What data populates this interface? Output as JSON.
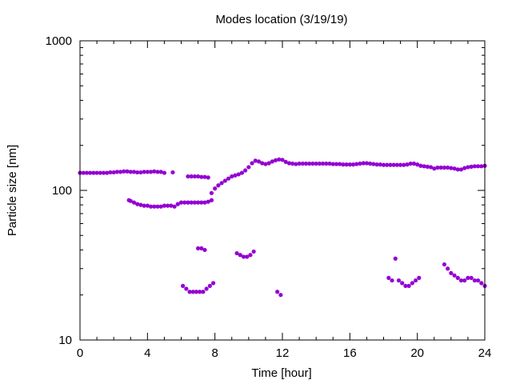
{
  "chart_data": {
    "type": "scatter",
    "title": "Modes location (3/19/19)",
    "xlabel": "Time [hour]",
    "ylabel": "Particle size [nm]",
    "xlim": [
      0,
      24
    ],
    "ylim": [
      10,
      1000
    ],
    "yscale": "log",
    "xticks": [
      0,
      4,
      8,
      12,
      16,
      20,
      24
    ],
    "xtick_labels": [
      "0",
      "4",
      "8",
      "12",
      "16",
      "20",
      "24"
    ],
    "yticks": [
      10,
      100,
      1000
    ],
    "ytick_labels": [
      "10",
      "100",
      "1000"
    ],
    "grid": false,
    "legend": "none",
    "marker_color": "#9400d3",
    "series": [
      {
        "values": [
          {
            "x": 0.0,
            "y": 131
          },
          {
            "x": 0.2,
            "y": 131
          },
          {
            "x": 0.4,
            "y": 131
          },
          {
            "x": 0.6,
            "y": 131
          },
          {
            "x": 0.8,
            "y": 131
          },
          {
            "x": 1.0,
            "y": 131
          },
          {
            "x": 1.2,
            "y": 131
          },
          {
            "x": 1.4,
            "y": 131
          },
          {
            "x": 1.6,
            "y": 131
          },
          {
            "x": 1.8,
            "y": 132
          },
          {
            "x": 2.0,
            "y": 132
          },
          {
            "x": 2.2,
            "y": 133
          },
          {
            "x": 2.4,
            "y": 133
          },
          {
            "x": 2.6,
            "y": 134
          },
          {
            "x": 2.8,
            "y": 134
          },
          {
            "x": 3.0,
            "y": 133
          },
          {
            "x": 3.2,
            "y": 133
          },
          {
            "x": 3.4,
            "y": 132
          },
          {
            "x": 3.6,
            "y": 132
          },
          {
            "x": 3.8,
            "y": 133
          },
          {
            "x": 4.0,
            "y": 133
          },
          {
            "x": 4.2,
            "y": 133
          },
          {
            "x": 4.4,
            "y": 134
          },
          {
            "x": 4.6,
            "y": 133
          },
          {
            "x": 4.8,
            "y": 133
          },
          {
            "x": 5.0,
            "y": 131
          },
          {
            "x": 5.5,
            "y": 132
          },
          {
            "x": 6.4,
            "y": 124
          },
          {
            "x": 6.6,
            "y": 124
          },
          {
            "x": 6.8,
            "y": 124
          },
          {
            "x": 7.0,
            "y": 124
          },
          {
            "x": 7.2,
            "y": 123
          },
          {
            "x": 7.4,
            "y": 123
          },
          {
            "x": 7.6,
            "y": 122
          },
          {
            "x": 7.8,
            "y": 96
          },
          {
            "x": 8.0,
            "y": 103
          },
          {
            "x": 8.2,
            "y": 108
          },
          {
            "x": 8.4,
            "y": 112
          },
          {
            "x": 8.6,
            "y": 116
          },
          {
            "x": 8.8,
            "y": 120
          },
          {
            "x": 9.0,
            "y": 124
          },
          {
            "x": 9.2,
            "y": 126
          },
          {
            "x": 9.4,
            "y": 128
          },
          {
            "x": 9.6,
            "y": 131
          },
          {
            "x": 9.8,
            "y": 136
          },
          {
            "x": 10.0,
            "y": 143
          },
          {
            "x": 10.2,
            "y": 152
          },
          {
            "x": 10.4,
            "y": 158
          },
          {
            "x": 10.6,
            "y": 156
          },
          {
            "x": 10.8,
            "y": 152
          },
          {
            "x": 11.0,
            "y": 150
          },
          {
            "x": 11.2,
            "y": 152
          },
          {
            "x": 11.4,
            "y": 156
          },
          {
            "x": 11.6,
            "y": 159
          },
          {
            "x": 11.8,
            "y": 161
          },
          {
            "x": 12.0,
            "y": 160
          },
          {
            "x": 12.2,
            "y": 155
          },
          {
            "x": 12.4,
            "y": 152
          },
          {
            "x": 12.6,
            "y": 151
          },
          {
            "x": 12.8,
            "y": 150
          },
          {
            "x": 13.0,
            "y": 151
          },
          {
            "x": 13.2,
            "y": 151
          },
          {
            "x": 13.4,
            "y": 151
          },
          {
            "x": 13.6,
            "y": 151
          },
          {
            "x": 13.8,
            "y": 151
          },
          {
            "x": 14.0,
            "y": 151
          },
          {
            "x": 14.2,
            "y": 151
          },
          {
            "x": 14.4,
            "y": 151
          },
          {
            "x": 14.6,
            "y": 151
          },
          {
            "x": 14.8,
            "y": 151
          },
          {
            "x": 15.0,
            "y": 150
          },
          {
            "x": 15.2,
            "y": 150
          },
          {
            "x": 15.4,
            "y": 150
          },
          {
            "x": 15.6,
            "y": 149
          },
          {
            "x": 15.8,
            "y": 149
          },
          {
            "x": 16.0,
            "y": 149
          },
          {
            "x": 16.2,
            "y": 149
          },
          {
            "x": 16.4,
            "y": 150
          },
          {
            "x": 16.6,
            "y": 151
          },
          {
            "x": 16.8,
            "y": 152
          },
          {
            "x": 17.0,
            "y": 152
          },
          {
            "x": 17.2,
            "y": 151
          },
          {
            "x": 17.4,
            "y": 150
          },
          {
            "x": 17.6,
            "y": 149
          },
          {
            "x": 17.8,
            "y": 149
          },
          {
            "x": 18.0,
            "y": 148
          },
          {
            "x": 18.2,
            "y": 148
          },
          {
            "x": 18.4,
            "y": 148
          },
          {
            "x": 18.6,
            "y": 148
          },
          {
            "x": 18.8,
            "y": 148
          },
          {
            "x": 19.0,
            "y": 148
          },
          {
            "x": 19.2,
            "y": 148
          },
          {
            "x": 19.4,
            "y": 149
          },
          {
            "x": 19.6,
            "y": 151
          },
          {
            "x": 19.8,
            "y": 151
          },
          {
            "x": 20.0,
            "y": 149
          },
          {
            "x": 20.2,
            "y": 146
          },
          {
            "x": 20.4,
            "y": 145
          },
          {
            "x": 20.6,
            "y": 144
          },
          {
            "x": 20.8,
            "y": 143
          },
          {
            "x": 21.0,
            "y": 140
          },
          {
            "x": 21.2,
            "y": 142
          },
          {
            "x": 21.4,
            "y": 142
          },
          {
            "x": 21.6,
            "y": 142
          },
          {
            "x": 21.8,
            "y": 142
          },
          {
            "x": 22.0,
            "y": 141
          },
          {
            "x": 22.2,
            "y": 140
          },
          {
            "x": 22.4,
            "y": 138
          },
          {
            "x": 22.6,
            "y": 138
          },
          {
            "x": 22.8,
            "y": 141
          },
          {
            "x": 23.0,
            "y": 143
          },
          {
            "x": 23.2,
            "y": 144
          },
          {
            "x": 23.4,
            "y": 145
          },
          {
            "x": 23.6,
            "y": 145
          },
          {
            "x": 23.8,
            "y": 145
          },
          {
            "x": 24.0,
            "y": 146
          },
          {
            "x": 2.9,
            "y": 86
          },
          {
            "x": 3.0,
            "y": 85
          },
          {
            "x": 3.2,
            "y": 83
          },
          {
            "x": 3.4,
            "y": 81
          },
          {
            "x": 3.6,
            "y": 80
          },
          {
            "x": 3.8,
            "y": 79
          },
          {
            "x": 4.0,
            "y": 79
          },
          {
            "x": 4.2,
            "y": 78
          },
          {
            "x": 4.4,
            "y": 78
          },
          {
            "x": 4.6,
            "y": 78
          },
          {
            "x": 4.8,
            "y": 78
          },
          {
            "x": 5.0,
            "y": 79
          },
          {
            "x": 5.2,
            "y": 79
          },
          {
            "x": 5.4,
            "y": 79
          },
          {
            "x": 5.6,
            "y": 78
          },
          {
            "x": 5.8,
            "y": 81
          },
          {
            "x": 6.0,
            "y": 83
          },
          {
            "x": 6.2,
            "y": 83
          },
          {
            "x": 6.4,
            "y": 83
          },
          {
            "x": 6.6,
            "y": 83
          },
          {
            "x": 6.8,
            "y": 83
          },
          {
            "x": 7.0,
            "y": 83
          },
          {
            "x": 7.2,
            "y": 83
          },
          {
            "x": 7.4,
            "y": 83
          },
          {
            "x": 7.6,
            "y": 84
          },
          {
            "x": 7.8,
            "y": 86
          },
          {
            "x": 7.0,
            "y": 41
          },
          {
            "x": 7.2,
            "y": 41
          },
          {
            "x": 7.4,
            "y": 40
          },
          {
            "x": 9.3,
            "y": 38
          },
          {
            "x": 9.5,
            "y": 37
          },
          {
            "x": 9.7,
            "y": 36
          },
          {
            "x": 9.9,
            "y": 36
          },
          {
            "x": 10.1,
            "y": 37
          },
          {
            "x": 10.3,
            "y": 39
          },
          {
            "x": 6.1,
            "y": 23
          },
          {
            "x": 6.3,
            "y": 22
          },
          {
            "x": 6.5,
            "y": 21
          },
          {
            "x": 6.7,
            "y": 21
          },
          {
            "x": 6.9,
            "y": 21
          },
          {
            "x": 7.1,
            "y": 21
          },
          {
            "x": 7.3,
            "y": 21
          },
          {
            "x": 7.5,
            "y": 22
          },
          {
            "x": 7.7,
            "y": 23
          },
          {
            "x": 7.9,
            "y": 24
          },
          {
            "x": 11.7,
            "y": 21
          },
          {
            "x": 11.9,
            "y": 20
          },
          {
            "x": 18.3,
            "y": 26
          },
          {
            "x": 18.5,
            "y": 25
          },
          {
            "x": 18.7,
            "y": 35
          },
          {
            "x": 18.9,
            "y": 25
          },
          {
            "x": 19.1,
            "y": 24
          },
          {
            "x": 19.3,
            "y": 23
          },
          {
            "x": 19.5,
            "y": 23
          },
          {
            "x": 19.7,
            "y": 24
          },
          {
            "x": 19.9,
            "y": 25
          },
          {
            "x": 20.1,
            "y": 26
          },
          {
            "x": 21.6,
            "y": 32
          },
          {
            "x": 21.8,
            "y": 30
          },
          {
            "x": 22.0,
            "y": 28
          },
          {
            "x": 22.2,
            "y": 27
          },
          {
            "x": 22.4,
            "y": 26
          },
          {
            "x": 22.6,
            "y": 25
          },
          {
            "x": 22.8,
            "y": 25
          },
          {
            "x": 23.0,
            "y": 26
          },
          {
            "x": 23.2,
            "y": 26
          },
          {
            "x": 23.4,
            "y": 25
          },
          {
            "x": 23.6,
            "y": 25
          },
          {
            "x": 23.8,
            "y": 24
          },
          {
            "x": 24.0,
            "y": 23
          }
        ]
      }
    ]
  }
}
